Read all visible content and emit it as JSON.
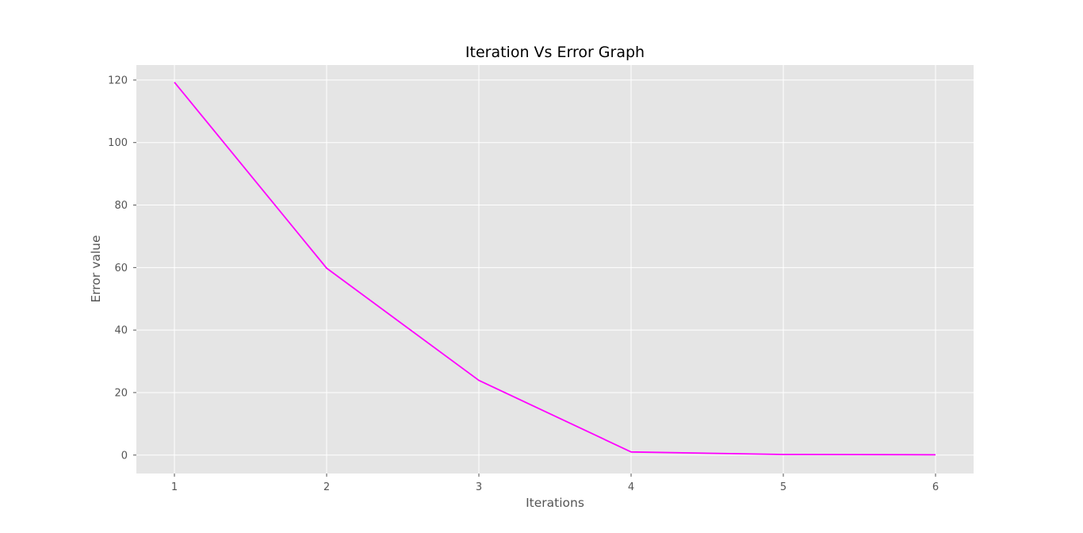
{
  "chart_data": {
    "type": "line",
    "title": "Iteration Vs Error Graph",
    "xlabel": "Iterations",
    "ylabel": "Error value",
    "x": [
      1,
      2,
      3,
      4,
      5,
      6
    ],
    "series": [
      {
        "values": [
          119.3,
          59.8,
          23.9,
          1.0,
          0.2,
          0.1
        ],
        "color": "#ff00ff"
      }
    ],
    "xticks": [
      "1",
      "2",
      "3",
      "4",
      "5",
      "6"
    ],
    "yticks": [
      "0",
      "20",
      "40",
      "60",
      "80",
      "100",
      "120"
    ],
    "xlim": [
      0.75,
      6.25
    ],
    "ylim": [
      -5.9,
      124.8
    ],
    "grid": true,
    "background_color": "#e5e5e5",
    "grid_color": "#ffffff",
    "tick_label_color": "#555555"
  }
}
